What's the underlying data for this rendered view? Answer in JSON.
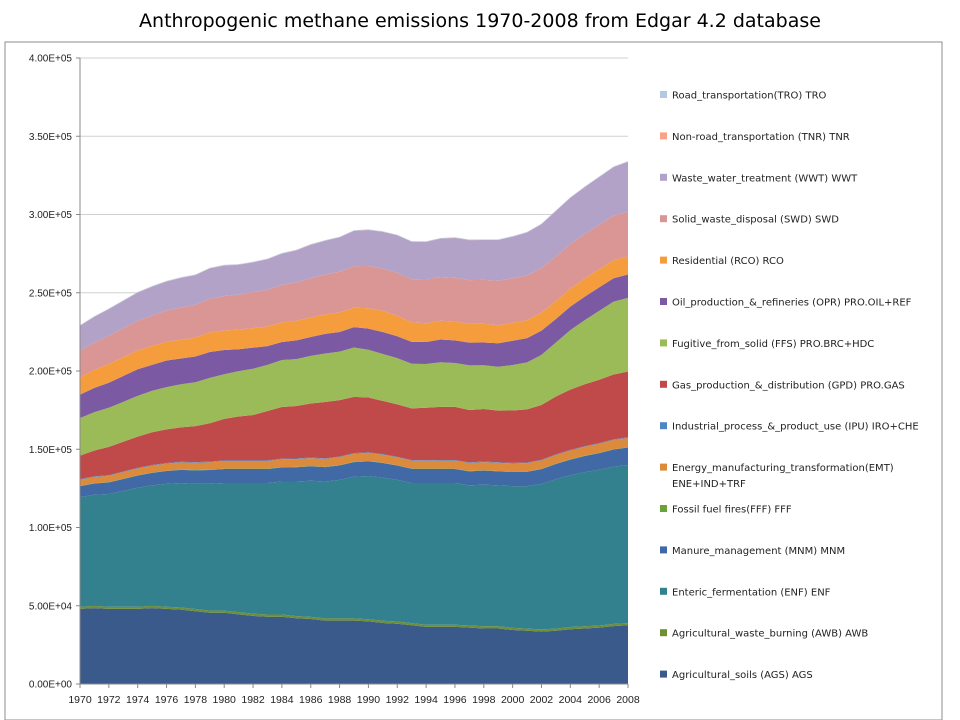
{
  "chart_data": {
    "type": "area",
    "stacked": true,
    "title": "Anthropogenic methane emissions 1970-2008 from Edgar 4.2 database",
    "xlabel": "",
    "ylabel": "",
    "ylim": [
      0,
      400000
    ],
    "y_ticks": [
      "0.00E+00",
      "5.00E+04",
      "1.00E+05",
      "1.50E+05",
      "2.00E+05",
      "2.50E+05",
      "3.00E+05",
      "3.50E+05",
      "4.00E+05"
    ],
    "x_tick_labels": [
      "1970",
      "1972",
      "1974",
      "1976",
      "1978",
      "1980",
      "1982",
      "1984",
      "1986",
      "1988",
      "1990",
      "1992",
      "1994",
      "1996",
      "1998",
      "2000",
      "2002",
      "2004",
      "2006",
      "2008"
    ],
    "grid": "horizontal",
    "legend_position": "right",
    "x": [
      1970,
      1971,
      1972,
      1973,
      1974,
      1975,
      1976,
      1977,
      1978,
      1979,
      1980,
      1981,
      1982,
      1983,
      1984,
      1985,
      1986,
      1987,
      1988,
      1989,
      1990,
      1991,
      1992,
      1993,
      1994,
      1995,
      1996,
      1997,
      1998,
      1999,
      2000,
      2001,
      2002,
      2003,
      2004,
      2005,
      2006,
      2007,
      2008
    ],
    "series": [
      {
        "name": "Agricultural_soils (AGS) AGS",
        "color": "#3a5a8c",
        "values": [
          48000,
          48500,
          48000,
          48000,
          48000,
          48500,
          48000,
          47500,
          46500,
          45500,
          45500,
          44500,
          43500,
          43000,
          43000,
          42000,
          41500,
          40500,
          40500,
          40500,
          40000,
          39000,
          38500,
          37500,
          36500,
          36500,
          36500,
          36000,
          35500,
          35500,
          34500,
          34000,
          33500,
          34000,
          35000,
          35500,
          36000,
          37000,
          37500
        ]
      },
      {
        "name": "Agricultural_waste_burning (AWB) AWB",
        "color": "#6e8f33",
        "values": [
          1400,
          1400,
          1400,
          1400,
          1400,
          1400,
          1400,
          1400,
          1400,
          1400,
          1400,
          1400,
          1400,
          1400,
          1400,
          1400,
          1400,
          1400,
          1400,
          1400,
          1400,
          1400,
          1400,
          1400,
          1400,
          1400,
          1400,
          1400,
          1400,
          1400,
          1400,
          1400,
          1400,
          1400,
          1400,
          1400,
          1400,
          1400,
          1400
        ]
      },
      {
        "name": "Enteric_fermentation (ENF) ENF",
        "color": "#33808f",
        "values": [
          70000,
          71000,
          72000,
          74000,
          76000,
          77000,
          78500,
          79500,
          80000,
          81000,
          81500,
          82500,
          83500,
          84000,
          85000,
          86000,
          87000,
          87500,
          88500,
          90500,
          91500,
          91500,
          90500,
          89500,
          90500,
          90500,
          90500,
          89500,
          90500,
          90000,
          90500,
          91000,
          93000,
          95500,
          97000,
          98500,
          99500,
          100500,
          101000
        ]
      },
      {
        "name": "Manure_management (MNM) MNM",
        "color": "#4169a5",
        "values": [
          7000,
          7200,
          7400,
          7600,
          7800,
          8000,
          8200,
          8400,
          8600,
          8800,
          9000,
          9000,
          9000,
          9000,
          9000,
          9100,
          9200,
          9200,
          9300,
          9400,
          9400,
          9300,
          9200,
          9100,
          9000,
          9000,
          9000,
          9000,
          9000,
          9000,
          9100,
          9200,
          9400,
          9700,
          10000,
          10300,
          10600,
          10900,
          11200
        ]
      },
      {
        "name": "Fossil fuel fires(FFF) FFF",
        "color": "#6aa33a",
        "values": [
          200,
          200,
          200,
          200,
          200,
          200,
          200,
          200,
          200,
          200,
          200,
          200,
          200,
          200,
          200,
          200,
          200,
          200,
          200,
          200,
          200,
          200,
          200,
          200,
          200,
          200,
          200,
          200,
          200,
          200,
          200,
          200,
          200,
          200,
          200,
          200,
          200,
          200,
          200
        ]
      },
      {
        "name": "Energy_manufacturing_transformation(EMT) ENE+IND+TRF",
        "color": "#dc8a3c",
        "values": [
          3900,
          4000,
          4100,
          4200,
          4300,
          4400,
          4500,
          4600,
          4700,
          4800,
          4900,
          4900,
          4900,
          4900,
          5000,
          5000,
          5000,
          5000,
          5100,
          5100,
          5200,
          5100,
          5000,
          5000,
          5000,
          5100,
          5100,
          5100,
          5200,
          5200,
          5200,
          5300,
          5400,
          5500,
          5600,
          5700,
          5800,
          5900,
          6000
        ]
      },
      {
        "name": "Industrial_process_&_product_use (IPU) IRO+CHE",
        "color": "#4f87c4",
        "values": [
          400,
          400,
          400,
          400,
          400,
          400,
          400,
          400,
          400,
          400,
          400,
          400,
          400,
          400,
          400,
          400,
          400,
          400,
          400,
          400,
          400,
          400,
          400,
          400,
          400,
          400,
          400,
          400,
          400,
          400,
          400,
          400,
          400,
          400,
          400,
          400,
          400,
          400,
          400
        ]
      },
      {
        "name": "Gas_production_&_distribution (GPD) PRO.GAS",
        "color": "#c0494a",
        "values": [
          15000,
          16500,
          18000,
          19000,
          20000,
          21000,
          21500,
          22000,
          23000,
          24500,
          26500,
          28000,
          29000,
          31500,
          33000,
          33500,
          34500,
          36000,
          36000,
          36000,
          35000,
          34000,
          33500,
          33000,
          33500,
          34000,
          34000,
          33500,
          33500,
          33000,
          33500,
          34000,
          35000,
          37000,
          38500,
          39500,
          40500,
          41500,
          42000
        ]
      },
      {
        "name": "Fugitive_from_solid (FFS) PRO.BRC+HDC",
        "color": "#9bbb59",
        "values": [
          24000,
          24500,
          25000,
          25500,
          26000,
          26500,
          27000,
          27500,
          28000,
          29000,
          28500,
          29000,
          29500,
          29500,
          30000,
          30000,
          30500,
          31000,
          31000,
          31500,
          30500,
          30000,
          29500,
          28500,
          28000,
          28500,
          28000,
          28500,
          28000,
          28000,
          29000,
          30000,
          32000,
          34500,
          38000,
          41000,
          44000,
          46500,
          47000
        ]
      },
      {
        "name": "Oil_production_&_refineries (OPR) PRO.OIL+REF",
        "color": "#7c5aa3",
        "values": [
          15000,
          15500,
          16000,
          16500,
          17000,
          16500,
          17000,
          16500,
          16500,
          16500,
          15500,
          14000,
          13500,
          12000,
          11500,
          12000,
          12000,
          12500,
          12500,
          13000,
          13500,
          14000,
          14000,
          14000,
          14000,
          14500,
          14500,
          14500,
          14500,
          15000,
          15500,
          15500,
          15500,
          15000,
          15000,
          15000,
          15000,
          15000,
          15000
        ]
      },
      {
        "name": "Residential (RCO) RCO",
        "color": "#f59d3d",
        "values": [
          11000,
          11500,
          12000,
          12000,
          12000,
          12000,
          12000,
          12000,
          12000,
          12500,
          12500,
          12500,
          12500,
          12500,
          12500,
          12500,
          12500,
          12500,
          12500,
          12500,
          13000,
          13500,
          13000,
          12500,
          12000,
          12000,
          12000,
          12000,
          12000,
          11500,
          11500,
          11500,
          11500,
          11500,
          11500,
          11500,
          11500,
          11500,
          11500
        ]
      },
      {
        "name": "Solid_waste_disposal (SWD) SWD",
        "color": "#d99694",
        "values": [
          17000,
          17500,
          18000,
          18500,
          19000,
          19500,
          20000,
          20500,
          21000,
          21500,
          22000,
          22500,
          23000,
          23500,
          24000,
          24500,
          25000,
          25500,
          26000,
          26500,
          27000,
          27000,
          27500,
          27500,
          28000,
          28000,
          28000,
          28000,
          28000,
          28500,
          28500,
          28500,
          28500,
          28500,
          28500,
          28500,
          28500,
          28500,
          28500
        ]
      },
      {
        "name": "Waste_water_treatment (WWT) WWT",
        "color": "#b3a2c7",
        "values": [
          16000,
          16500,
          17000,
          17500,
          18000,
          18500,
          18500,
          19000,
          19000,
          19500,
          19500,
          19000,
          19000,
          19500,
          20000,
          20500,
          21500,
          21500,
          22000,
          22500,
          23000,
          23500,
          24000,
          24000,
          24000,
          24500,
          25500,
          25500,
          25500,
          26000,
          26500,
          27500,
          28000,
          29000,
          29500,
          30000,
          30500,
          31000,
          32000
        ]
      },
      {
        "name": "Non-road_transportation (TNR) TNR",
        "color": "#f8a385",
        "values": [
          100,
          100,
          100,
          100,
          100,
          100,
          100,
          100,
          100,
          100,
          100,
          100,
          100,
          100,
          100,
          100,
          100,
          100,
          100,
          100,
          100,
          100,
          100,
          100,
          100,
          100,
          100,
          100,
          100,
          100,
          100,
          100,
          100,
          100,
          100,
          100,
          100,
          100,
          100
        ]
      },
      {
        "name": "Road_transportation(TRO) TRO",
        "color": "#b5c8e2",
        "values": [
          300,
          300,
          300,
          300,
          300,
          300,
          300,
          300,
          300,
          300,
          300,
          300,
          300,
          300,
          300,
          300,
          300,
          300,
          300,
          300,
          300,
          300,
          300,
          300,
          300,
          300,
          300,
          300,
          300,
          300,
          300,
          300,
          300,
          300,
          300,
          300,
          300,
          300,
          300
        ]
      }
    ],
    "legend_order": [
      "Road_transportation(TRO) TRO",
      "Non-road_transportation (TNR) TNR",
      "Waste_water_treatment (WWT) WWT",
      "Solid_waste_disposal (SWD) SWD",
      "Residential (RCO) RCO",
      "Oil_production_&_refineries (OPR) PRO.OIL+REF",
      "Fugitive_from_solid (FFS) PRO.BRC+HDC",
      "Gas_production_&_distribution (GPD) PRO.GAS",
      "Industrial_process_&_product_use (IPU) IRO+CHE",
      "Energy_manufacturing_transformation(EMT) ENE+IND+TRF",
      "Fossil fuel fires(FFF) FFF",
      "Manure_management (MNM) MNM",
      "Enteric_fermentation (ENF) ENF",
      "Agricultural_waste_burning (AWB) AWB",
      "Agricultural_soils (AGS) AGS"
    ],
    "legend_display": {
      "Energy_manufacturing_transformation(EMT) ENE+IND+TRF": [
        "Energy_manufacturing_transformation(EMT)",
        "ENE+IND+TRF"
      ]
    }
  }
}
